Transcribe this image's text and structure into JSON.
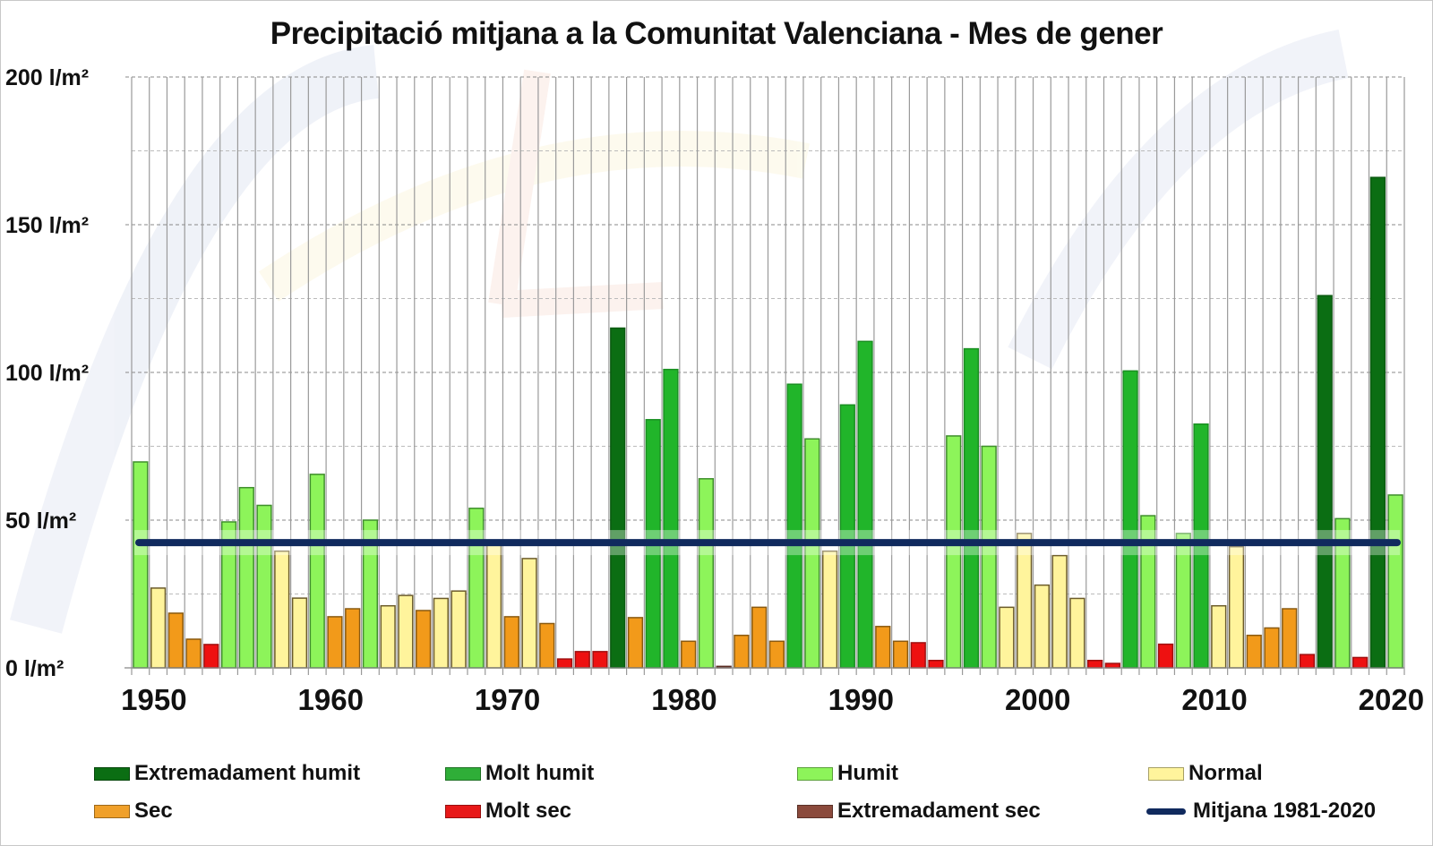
{
  "chart_data": {
    "type": "bar",
    "title": "Precipitació mitjana a la Comunitat Valenciana - Mes de gener",
    "xlabel": "",
    "ylabel": "",
    "ylim": [
      0,
      200
    ],
    "unit": "l/m²",
    "y_ticks": [
      "0 l/m²",
      "50 l/m²",
      "100 l/m²",
      "150 l/m²",
      "200 l/m²"
    ],
    "y_tick_values": [
      0,
      50,
      100,
      150,
      200
    ],
    "minor_grid_step": 25,
    "x_tick_labels": [
      "1950",
      "1960",
      "1970",
      "1980",
      "1990",
      "2000",
      "2010",
      "2020"
    ],
    "grid": true,
    "legend_position": "bottom",
    "categories_colors": {
      "EH": "#0b6e13",
      "MH": "#21b52a",
      "H": "#8df45a",
      "N": "#fff49c",
      "S": "#f29a1a",
      "MS": "#ee1111",
      "ES": "#8b4a3c"
    },
    "mean_line": {
      "label": "Mitjana 1981-2020",
      "value": 42.4,
      "color": "#102a5e"
    },
    "years": [
      1950,
      1951,
      1952,
      1953,
      1954,
      1955,
      1956,
      1957,
      1958,
      1959,
      1960,
      1961,
      1962,
      1963,
      1964,
      1965,
      1966,
      1967,
      1968,
      1969,
      1970,
      1971,
      1972,
      1973,
      1974,
      1975,
      1976,
      1977,
      1978,
      1979,
      1980,
      1981,
      1982,
      1983,
      1984,
      1985,
      1986,
      1987,
      1988,
      1989,
      1990,
      1991,
      1992,
      1993,
      1994,
      1995,
      1996,
      1997,
      1998,
      1999,
      2000,
      2001,
      2002,
      2003,
      2004,
      2005,
      2006,
      2007,
      2008,
      2009,
      2010,
      2011,
      2012,
      2013,
      2014,
      2015,
      2016,
      2017,
      2018,
      2019,
      2020,
      2021
    ],
    "values": [
      69.7,
      27,
      18.5,
      9.7,
      7.9,
      49.4,
      61,
      55,
      39.5,
      23.6,
      65.5,
      17.3,
      20,
      50,
      21,
      24.5,
      19.4,
      23.5,
      26,
      54,
      42,
      17.3,
      37,
      15,
      3,
      5.5,
      5.5,
      115,
      17,
      84,
      101,
      9,
      64,
      0.5,
      11,
      20.5,
      9,
      96,
      77.5,
      39.5,
      89,
      110.5,
      14,
      9,
      8.5,
      2.5,
      78.5,
      108,
      75,
      20.5,
      45.5,
      28,
      38,
      23.5,
      2.5,
      1.5,
      100.5,
      51.5,
      8,
      45.5,
      82.5,
      21,
      41,
      11,
      13.5,
      20,
      4.5,
      126,
      50.5,
      3.5,
      166,
      58.5
    ],
    "classes": [
      "H",
      "N",
      "S",
      "S",
      "MS",
      "H",
      "H",
      "H",
      "N",
      "N",
      "H",
      "S",
      "S",
      "H",
      "N",
      "N",
      "S",
      "N",
      "N",
      "H",
      "N",
      "S",
      "N",
      "S",
      "MS",
      "MS",
      "MS",
      "EH",
      "S",
      "MH",
      "MH",
      "S",
      "H",
      "ES",
      "S",
      "S",
      "S",
      "MH",
      "H",
      "N",
      "MH",
      "MH",
      "S",
      "S",
      "MS",
      "MS",
      "H",
      "MH",
      "H",
      "N",
      "N",
      "N",
      "N",
      "N",
      "MS",
      "MS",
      "MH",
      "H",
      "MS",
      "H",
      "MH",
      "N",
      "N",
      "S",
      "S",
      "S",
      "MS",
      "EH",
      "H",
      "MS",
      "EH",
      "H"
    ],
    "legend": [
      {
        "key": "EH",
        "label": "Extremadament humit"
      },
      {
        "key": "MH",
        "label": "Molt humit"
      },
      {
        "key": "H",
        "label": "Humit"
      },
      {
        "key": "N",
        "label": "Normal"
      },
      {
        "key": "S",
        "label": "Sec"
      },
      {
        "key": "MS",
        "label": "Molt sec"
      },
      {
        "key": "ES",
        "label": "Extremadament sec"
      },
      {
        "key": "MEAN",
        "label": "Mitjana 1981-2020"
      }
    ]
  }
}
